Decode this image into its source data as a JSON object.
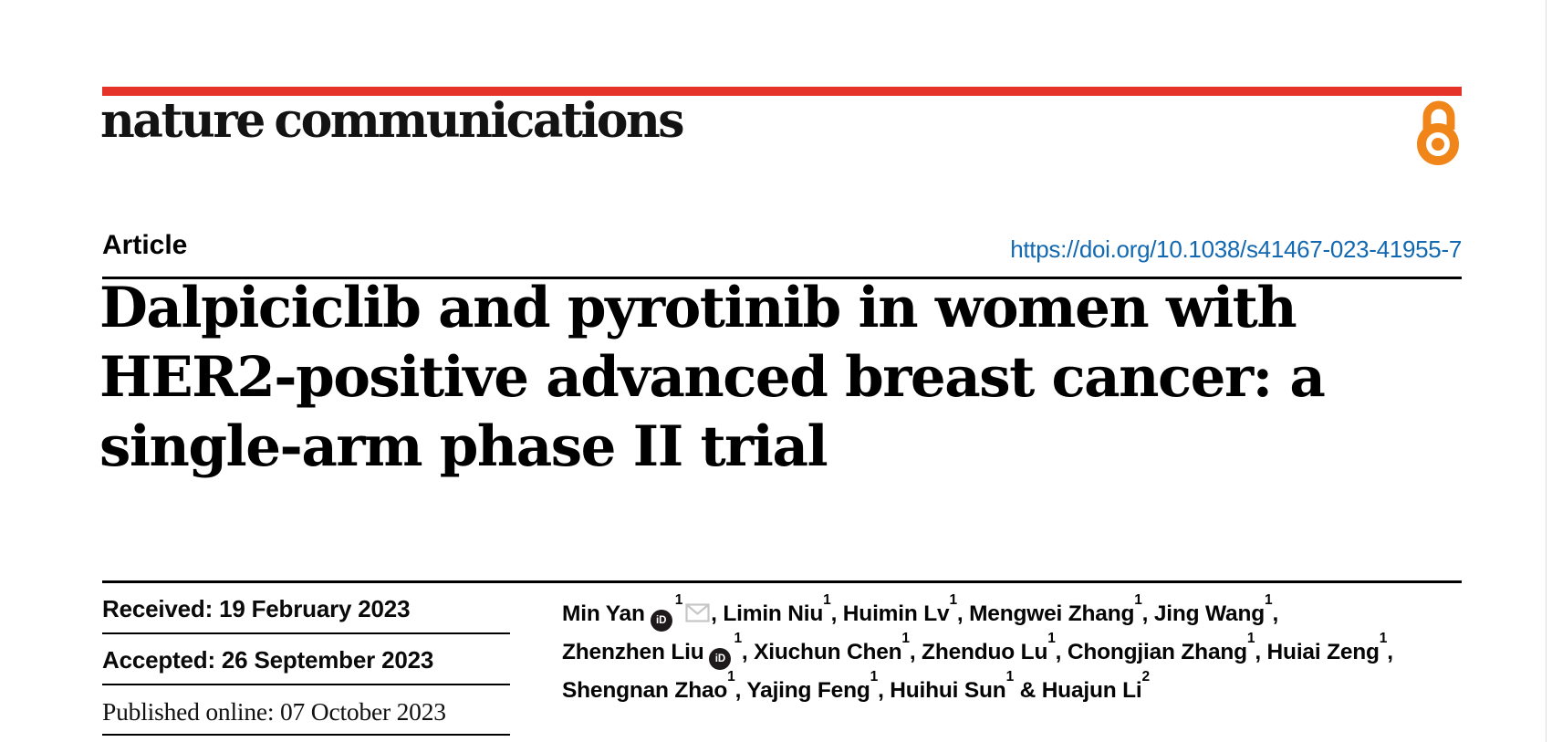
{
  "masthead": {
    "journal_name": "nature communications"
  },
  "article": {
    "type_label": "Article",
    "doi": "https://doi.org/10.1038/s41467-023-41955-7",
    "title_lines": [
      "Dalpiciclib and pyrotinib in women with",
      "HER2-positive advanced breast cancer: a",
      "single-arm phase II trial"
    ]
  },
  "dates": {
    "received": "Received: 19 February 2023",
    "accepted": "Accepted: 26 September 2023",
    "published": "Published online: 07 October 2023"
  },
  "authors": {
    "lines": [
      [
        {
          "t": "text",
          "v": "Min Yan"
        },
        {
          "t": "orcid"
        },
        {
          "t": "sup",
          "v": "1"
        },
        {
          "t": "mail"
        },
        {
          "t": "text",
          "v": ", Limin Niu"
        },
        {
          "t": "sup",
          "v": "1"
        },
        {
          "t": "text",
          "v": ", Huimin Lv"
        },
        {
          "t": "sup",
          "v": "1"
        },
        {
          "t": "text",
          "v": ", Mengwei Zhang"
        },
        {
          "t": "sup",
          "v": "1"
        },
        {
          "t": "text",
          "v": ", Jing Wang"
        },
        {
          "t": "sup",
          "v": "1"
        },
        {
          "t": "text",
          "v": ","
        }
      ],
      [
        {
          "t": "text",
          "v": "Zhenzhen Liu"
        },
        {
          "t": "orcid"
        },
        {
          "t": "sup",
          "v": "1"
        },
        {
          "t": "text",
          "v": ", Xiuchun Chen"
        },
        {
          "t": "sup",
          "v": "1"
        },
        {
          "t": "text",
          "v": ", Zhenduo Lu"
        },
        {
          "t": "sup",
          "v": "1"
        },
        {
          "t": "text",
          "v": ", Chongjian Zhang"
        },
        {
          "t": "sup",
          "v": "1"
        },
        {
          "t": "text",
          "v": ", Huiai Zeng"
        },
        {
          "t": "sup",
          "v": "1"
        },
        {
          "t": "text",
          "v": ","
        }
      ],
      [
        {
          "t": "text",
          "v": "Shengnan Zhao"
        },
        {
          "t": "sup",
          "v": "1"
        },
        {
          "t": "text",
          "v": ", Yajing Feng"
        },
        {
          "t": "sup",
          "v": "1"
        },
        {
          "t": "text",
          "v": ", Huihui Sun"
        },
        {
          "t": "sup",
          "v": "1"
        },
        {
          "t": "text",
          "v": " & Huajun Li"
        },
        {
          "t": "sup",
          "v": "2"
        }
      ]
    ],
    "orcid_icon_label": "iD"
  },
  "colors": {
    "accent_red": "#e63329",
    "link_blue": "#1268b1",
    "open_access_orange": "#f08519",
    "envelope_gray": "#c6c6c6"
  }
}
